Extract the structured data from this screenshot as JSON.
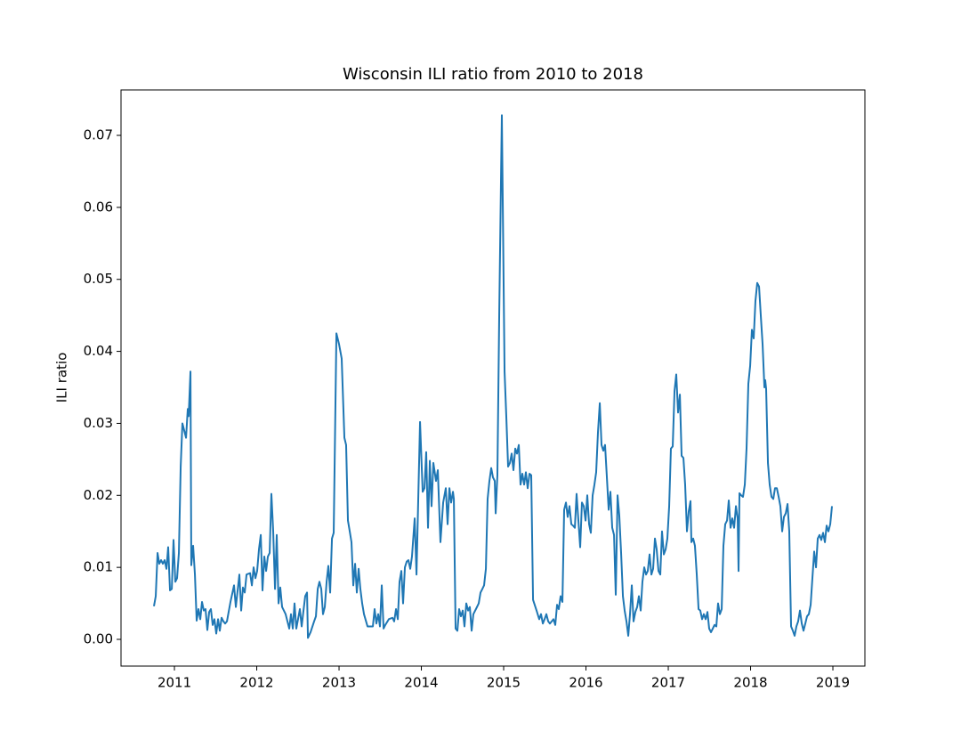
{
  "chart_data": {
    "type": "line",
    "title": "Wisconsin ILI ratio from 2010 to 2018",
    "y_label": "ILI ratio",
    "xlim": [
      2010.351,
      2019.389
    ],
    "ylim": [
      -0.00371,
      0.07631
    ],
    "xticks": [
      2011,
      2012,
      2013,
      2014,
      2015,
      2016,
      2017,
      2018,
      2019
    ],
    "yticks": [
      {
        "value": 0,
        "label": "0.00"
      },
      0.01,
      0.02,
      0.03,
      0.04,
      0.05,
      0.06,
      0.07
    ],
    "grid": false,
    "series": [
      {
        "color": "#1f77b4",
        "x": [
          2010.751,
          2010.773,
          2010.795,
          2010.816,
          2010.838,
          2010.859,
          2010.881,
          2010.903,
          2010.924,
          2010.946,
          2010.968,
          2010.989,
          2011.011,
          2011.032,
          2011.054,
          2011.076,
          2011.097,
          2011.119,
          2011.141,
          2011.162,
          2011.173,
          2011.195,
          2011.205,
          2011.227,
          2011.249,
          2011.27,
          2011.292,
          2011.314,
          2011.335,
          2011.357,
          2011.378,
          2011.4,
          2011.422,
          2011.443,
          2011.465,
          2011.486,
          2011.508,
          2011.53,
          2011.551,
          2011.573,
          2011.595,
          2011.616,
          2011.638,
          2011.681,
          2011.724,
          2011.746,
          2011.789,
          2011.811,
          2011.832,
          2011.854,
          2011.876,
          2011.919,
          2011.941,
          2011.962,
          2011.984,
          2012.005,
          2012.027,
          2012.049,
          2012.07,
          2012.092,
          2012.114,
          2012.135,
          2012.157,
          2012.178,
          2012.2,
          2012.222,
          2012.243,
          2012.265,
          2012.286,
          2012.308,
          2012.351,
          2012.395,
          2012.416,
          2012.438,
          2012.459,
          2012.481,
          2012.524,
          2012.546,
          2012.568,
          2012.589,
          2012.611,
          2012.622,
          2012.654,
          2012.697,
          2012.719,
          2012.741,
          2012.762,
          2012.784,
          2012.805,
          2012.827,
          2012.849,
          2012.87,
          2012.892,
          2012.914,
          2012.935,
          2012.968,
          2013.0,
          2013.032,
          2013.065,
          2013.086,
          2013.108,
          2013.13,
          2013.151,
          2013.173,
          2013.195,
          2013.216,
          2013.238,
          2013.259,
          2013.281,
          2013.303,
          2013.346,
          2013.411,
          2013.432,
          2013.454,
          2013.476,
          2013.497,
          2013.519,
          2013.541,
          2013.562,
          2013.605,
          2013.649,
          2013.67,
          2013.692,
          2013.714,
          2013.735,
          2013.757,
          2013.778,
          2013.8,
          2013.822,
          2013.843,
          2013.865,
          2013.886,
          2013.919,
          2013.941,
          2013.984,
          2014.016,
          2014.038,
          2014.059,
          2014.081,
          2014.103,
          2014.124,
          2014.146,
          2014.178,
          2014.2,
          2014.232,
          2014.265,
          2014.297,
          2014.319,
          2014.341,
          2014.362,
          2014.384,
          2014.395,
          2014.416,
          2014.438,
          2014.459,
          2014.481,
          2014.503,
          2014.524,
          2014.546,
          2014.568,
          2014.589,
          2014.611,
          2014.632,
          2014.676,
          2014.697,
          2014.719,
          2014.741,
          2014.762,
          2014.784,
          2014.805,
          2014.827,
          2014.849,
          2014.87,
          2014.892,
          2014.903,
          2014.924,
          2014.946,
          2014.978,
          2015.011,
          2015.032,
          2015.054,
          2015.076,
          2015.097,
          2015.119,
          2015.141,
          2015.162,
          2015.184,
          2015.205,
          2015.227,
          2015.249,
          2015.27,
          2015.292,
          2015.314,
          2015.335,
          2015.357,
          2015.4,
          2015.432,
          2015.454,
          2015.476,
          2015.497,
          2015.519,
          2015.541,
          2015.562,
          2015.605,
          2015.627,
          2015.649,
          2015.67,
          2015.692,
          2015.714,
          2015.735,
          2015.757,
          2015.778,
          2015.8,
          2015.822,
          2015.843,
          2015.865,
          2015.886,
          2015.908,
          2015.93,
          2015.951,
          2015.973,
          2015.995,
          2016.016,
          2016.038,
          2016.059,
          2016.081,
          2016.103,
          2016.124,
          2016.146,
          2016.168,
          2016.189,
          2016.211,
          2016.232,
          2016.254,
          2016.276,
          2016.297,
          2016.319,
          2016.341,
          2016.362,
          2016.384,
          2016.405,
          2016.427,
          2016.449,
          2016.47,
          2016.492,
          2016.514,
          2016.535,
          2016.557,
          2016.578,
          2016.6,
          2016.622,
          2016.643,
          2016.665,
          2016.686,
          2016.708,
          2016.73,
          2016.751,
          2016.773,
          2016.795,
          2016.816,
          2016.838,
          2016.859,
          2016.881,
          2016.903,
          2016.924,
          2016.946,
          2016.968,
          2016.989,
          2017.011,
          2017.032,
          2017.054,
          2017.076,
          2017.097,
          2017.119,
          2017.141,
          2017.162,
          2017.184,
          2017.205,
          2017.227,
          2017.249,
          2017.27,
          2017.281,
          2017.303,
          2017.324,
          2017.346,
          2017.368,
          2017.389,
          2017.411,
          2017.432,
          2017.454,
          2017.476,
          2017.497,
          2017.519,
          2017.541,
          2017.562,
          2017.584,
          2017.605,
          2017.627,
          2017.649,
          2017.67,
          2017.692,
          2017.714,
          2017.735,
          2017.757,
          2017.778,
          2017.8,
          2017.822,
          2017.843,
          2017.854,
          2017.865,
          2017.886,
          2017.908,
          2017.93,
          2017.951,
          2017.973,
          2017.995,
          2018.016,
          2018.038,
          2018.059,
          2018.081,
          2018.103,
          2018.124,
          2018.146,
          2018.168,
          2018.178,
          2018.189,
          2018.211,
          2018.232,
          2018.254,
          2018.276,
          2018.297,
          2018.319,
          2018.341,
          2018.362,
          2018.384,
          2018.405,
          2018.427,
          2018.449,
          2018.47,
          2018.492,
          2018.514,
          2018.535,
          2018.557,
          2018.578,
          2018.6,
          2018.622,
          2018.643,
          2018.665,
          2018.686,
          2018.708,
          2018.73,
          2018.751,
          2018.773,
          2018.795,
          2018.816,
          2018.838,
          2018.859,
          2018.881,
          2018.903,
          2018.924,
          2018.946,
          2018.968,
          2018.989
        ],
        "values": [
          0.0046,
          0.006,
          0.012,
          0.0105,
          0.011,
          0.0105,
          0.011,
          0.0098,
          0.0128,
          0.0068,
          0.007,
          0.0138,
          0.008,
          0.0085,
          0.012,
          0.024,
          0.03,
          0.029,
          0.028,
          0.032,
          0.031,
          0.0372,
          0.0103,
          0.013,
          0.009,
          0.0026,
          0.0042,
          0.0028,
          0.0052,
          0.004,
          0.0042,
          0.0013,
          0.0038,
          0.0042,
          0.002,
          0.0028,
          0.0008,
          0.0028,
          0.0012,
          0.003,
          0.0025,
          0.0022,
          0.0025,
          0.0052,
          0.0075,
          0.0045,
          0.009,
          0.004,
          0.0072,
          0.0065,
          0.009,
          0.0092,
          0.0075,
          0.01,
          0.0085,
          0.0095,
          0.0125,
          0.0145,
          0.0068,
          0.0115,
          0.0095,
          0.0115,
          0.012,
          0.0202,
          0.015,
          0.007,
          0.0145,
          0.005,
          0.0072,
          0.0045,
          0.0035,
          0.0015,
          0.0035,
          0.0015,
          0.005,
          0.0015,
          0.0042,
          0.0018,
          0.004,
          0.006,
          0.0065,
          0.0002,
          0.001,
          0.0025,
          0.0032,
          0.007,
          0.008,
          0.007,
          0.0035,
          0.0045,
          0.008,
          0.0102,
          0.0065,
          0.014,
          0.0148,
          0.0425,
          0.041,
          0.039,
          0.028,
          0.027,
          0.0165,
          0.015,
          0.0135,
          0.0075,
          0.0105,
          0.0065,
          0.0098,
          0.007,
          0.005,
          0.0035,
          0.0018,
          0.0018,
          0.0042,
          0.0022,
          0.0035,
          0.0018,
          0.0075,
          0.0015,
          0.002,
          0.0028,
          0.003,
          0.0025,
          0.0042,
          0.0028,
          0.008,
          0.0095,
          0.005,
          0.01,
          0.0108,
          0.011,
          0.0098,
          0.0115,
          0.0168,
          0.009,
          0.0302,
          0.0205,
          0.021,
          0.026,
          0.0155,
          0.0248,
          0.0185,
          0.0245,
          0.022,
          0.0235,
          0.0135,
          0.019,
          0.021,
          0.016,
          0.021,
          0.019,
          0.0205,
          0.0195,
          0.0015,
          0.0012,
          0.0042,
          0.0032,
          0.004,
          0.0018,
          0.005,
          0.004,
          0.0045,
          0.0012,
          0.0035,
          0.0045,
          0.005,
          0.0065,
          0.007,
          0.0075,
          0.0098,
          0.0195,
          0.022,
          0.0238,
          0.0225,
          0.022,
          0.0175,
          0.0228,
          0.045,
          0.0728,
          0.0372,
          0.031,
          0.024,
          0.0245,
          0.0258,
          0.0235,
          0.0265,
          0.0258,
          0.027,
          0.0215,
          0.023,
          0.0215,
          0.0232,
          0.021,
          0.023,
          0.0228,
          0.0055,
          0.004,
          0.0028,
          0.0035,
          0.0022,
          0.0028,
          0.0035,
          0.0025,
          0.0022,
          0.0028,
          0.002,
          0.0048,
          0.0042,
          0.006,
          0.0052,
          0.018,
          0.019,
          0.017,
          0.0185,
          0.016,
          0.0158,
          0.0155,
          0.0202,
          0.0165,
          0.0128,
          0.019,
          0.0185,
          0.0165,
          0.02,
          0.016,
          0.0148,
          0.02,
          0.0215,
          0.0232,
          0.0288,
          0.0328,
          0.027,
          0.0262,
          0.027,
          0.0225,
          0.018,
          0.0205,
          0.0155,
          0.0145,
          0.0062,
          0.02,
          0.0172,
          0.012,
          0.006,
          0.004,
          0.0025,
          0.0005,
          0.0035,
          0.0075,
          0.0025,
          0.0038,
          0.0045,
          0.006,
          0.004,
          0.008,
          0.01,
          0.009,
          0.0095,
          0.0118,
          0.009,
          0.0098,
          0.014,
          0.0125,
          0.0095,
          0.009,
          0.015,
          0.0118,
          0.0125,
          0.014,
          0.0185,
          0.0265,
          0.0268,
          0.0345,
          0.0368,
          0.0315,
          0.034,
          0.0255,
          0.0252,
          0.0215,
          0.015,
          0.0178,
          0.0192,
          0.0135,
          0.014,
          0.013,
          0.009,
          0.0042,
          0.004,
          0.0028,
          0.0035,
          0.0028,
          0.0038,
          0.0015,
          0.001,
          0.0015,
          0.002,
          0.0018,
          0.005,
          0.0035,
          0.0042,
          0.013,
          0.016,
          0.0165,
          0.0193,
          0.0155,
          0.0168,
          0.0155,
          0.0185,
          0.0168,
          0.0095,
          0.0203,
          0.02,
          0.0198,
          0.0215,
          0.0265,
          0.0355,
          0.038,
          0.043,
          0.0418,
          0.047,
          0.0495,
          0.049,
          0.045,
          0.041,
          0.035,
          0.036,
          0.0348,
          0.0245,
          0.0215,
          0.0198,
          0.0195,
          0.021,
          0.021,
          0.0198,
          0.0185,
          0.015,
          0.017,
          0.0175,
          0.0188,
          0.015,
          0.0018,
          0.0012,
          0.0005,
          0.0018,
          0.0025,
          0.004,
          0.0022,
          0.0012,
          0.0022,
          0.0032,
          0.0035,
          0.0048,
          0.0085,
          0.0122,
          0.01,
          0.014,
          0.0145,
          0.0138,
          0.0148,
          0.0135,
          0.0158,
          0.015,
          0.016,
          0.0185
        ]
      }
    ]
  }
}
